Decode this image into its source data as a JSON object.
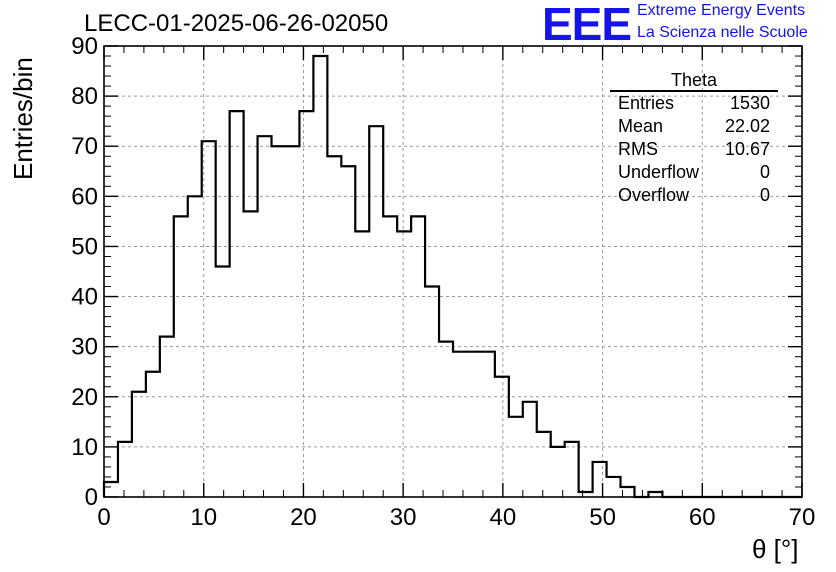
{
  "header": {
    "run_title": "LECC-01-2025-06-26-02050"
  },
  "logo": {
    "mark": "EEE",
    "line1": "Extreme Energy Events",
    "line2": "La Scienza nelle Scuole",
    "color": "#1414e6"
  },
  "stats": {
    "title": "Theta",
    "rows": [
      {
        "label": "Entries",
        "value": "1530"
      },
      {
        "label": "Mean",
        "value": "22.02"
      },
      {
        "label": "RMS",
        "value": "10.67"
      },
      {
        "label": "Underflow",
        "value": "0"
      },
      {
        "label": "Overflow",
        "value": "0"
      }
    ]
  },
  "chart_data": {
    "type": "bar",
    "style": "step-histogram",
    "xlabel": "θ [°]",
    "ylabel": "Entries/bin",
    "xlim": [
      0,
      70
    ],
    "ylim": [
      0,
      90
    ],
    "bin_width": 1.4,
    "xticks": [
      0,
      10,
      20,
      30,
      40,
      50,
      60,
      70
    ],
    "yticks": [
      0,
      10,
      20,
      30,
      40,
      50,
      60,
      70,
      80,
      90
    ],
    "grid": true,
    "values": [
      3,
      11,
      21,
      25,
      32,
      56,
      60,
      71,
      46,
      77,
      57,
      72,
      70,
      70,
      77,
      88,
      68,
      66,
      53,
      74,
      56,
      53,
      56,
      42,
      31,
      29,
      29,
      29,
      24,
      16,
      19,
      13,
      10,
      11,
      1,
      7,
      4,
      2,
      0,
      1,
      0,
      0,
      0,
      0,
      0,
      0,
      0,
      0,
      0,
      0
    ]
  }
}
